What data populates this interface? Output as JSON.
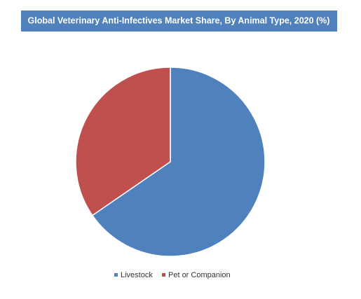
{
  "chart_data": {
    "type": "pie",
    "title": "Global Veterinary Anti-Infectives Market Share, By Animal Type, 2020 (%)",
    "categories": [
      "Livestock",
      "Pet or Companion"
    ],
    "values": [
      65.4,
      34.6
    ],
    "colors": [
      "#4f81bd",
      "#c0504d"
    ],
    "legend": "bottom"
  }
}
